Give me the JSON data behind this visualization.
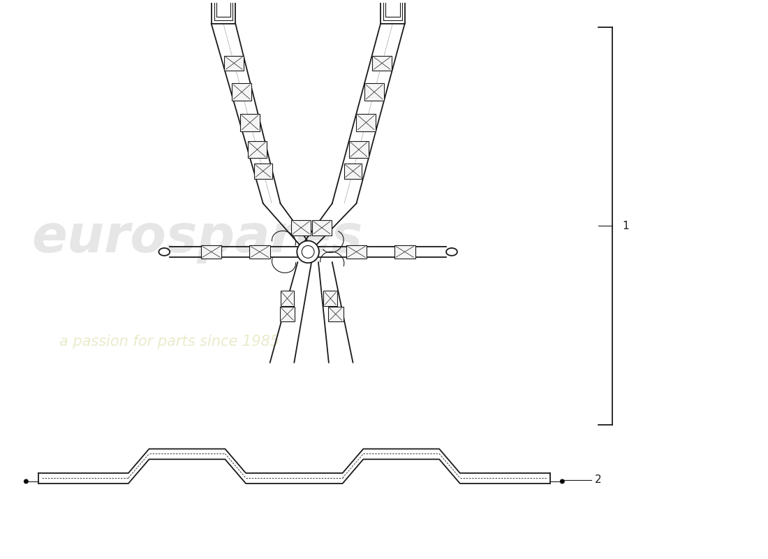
{
  "bg_color": "#ffffff",
  "line_color": "#1a1a1a",
  "label1": "1",
  "label2": "2",
  "fig_width": 11.0,
  "fig_height": 8.0,
  "dpi": 100
}
